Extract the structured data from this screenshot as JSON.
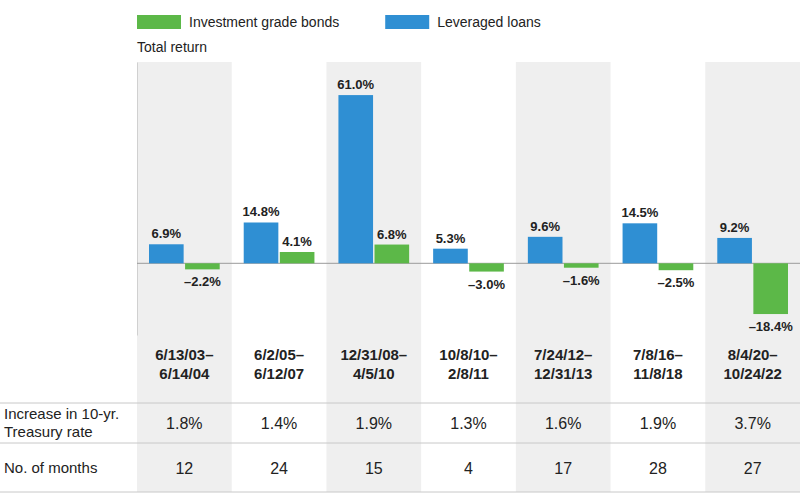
{
  "chart_data": {
    "type": "bar",
    "title": "Total return",
    "categories": [
      "6/13/03–6/14/04",
      "6/2/05–6/12/07",
      "12/31/08–4/5/10",
      "10/8/10–2/8/11",
      "7/24/12–12/31/13",
      "7/8/16–11/8/18",
      "8/4/20–10/24/22"
    ],
    "series": [
      {
        "name": "Leveraged loans",
        "color": "#2f8fd3",
        "values": [
          6.9,
          14.8,
          61.0,
          5.3,
          9.6,
          14.5,
          9.2
        ],
        "value_labels": [
          "6.9%",
          "14.8%",
          "61.0%",
          "5.3%",
          "9.6%",
          "14.5%",
          "9.2%"
        ]
      },
      {
        "name": "Investment grade bonds",
        "color": "#5cb848",
        "values": [
          -2.2,
          4.1,
          6.8,
          -3.0,
          -1.6,
          -2.5,
          -18.4
        ],
        "value_labels": [
          "–2.2%",
          "4.1%",
          "6.8%",
          "–3.0%",
          "–1.6%",
          "–2.5%",
          "–18.4%"
        ]
      }
    ],
    "ylim": [
      -26,
      73
    ],
    "yticks": [
      0
    ],
    "data_labels": true,
    "tick_labels": "x",
    "legend": "top",
    "table": {
      "rows": [
        {
          "label": "Increase in 10-yr. Treasury rate",
          "values": [
            1.8,
            1.4,
            1.9,
            1.3,
            1.6,
            1.9,
            3.7
          ],
          "value_labels": [
            "1.8%",
            "1.4%",
            "1.9%",
            "1.3%",
            "1.6%",
            "1.9%",
            "3.7%"
          ]
        },
        {
          "label": "No. of months",
          "values": [
            12,
            24,
            15,
            4,
            17,
            28,
            27
          ]
        }
      ]
    }
  }
}
